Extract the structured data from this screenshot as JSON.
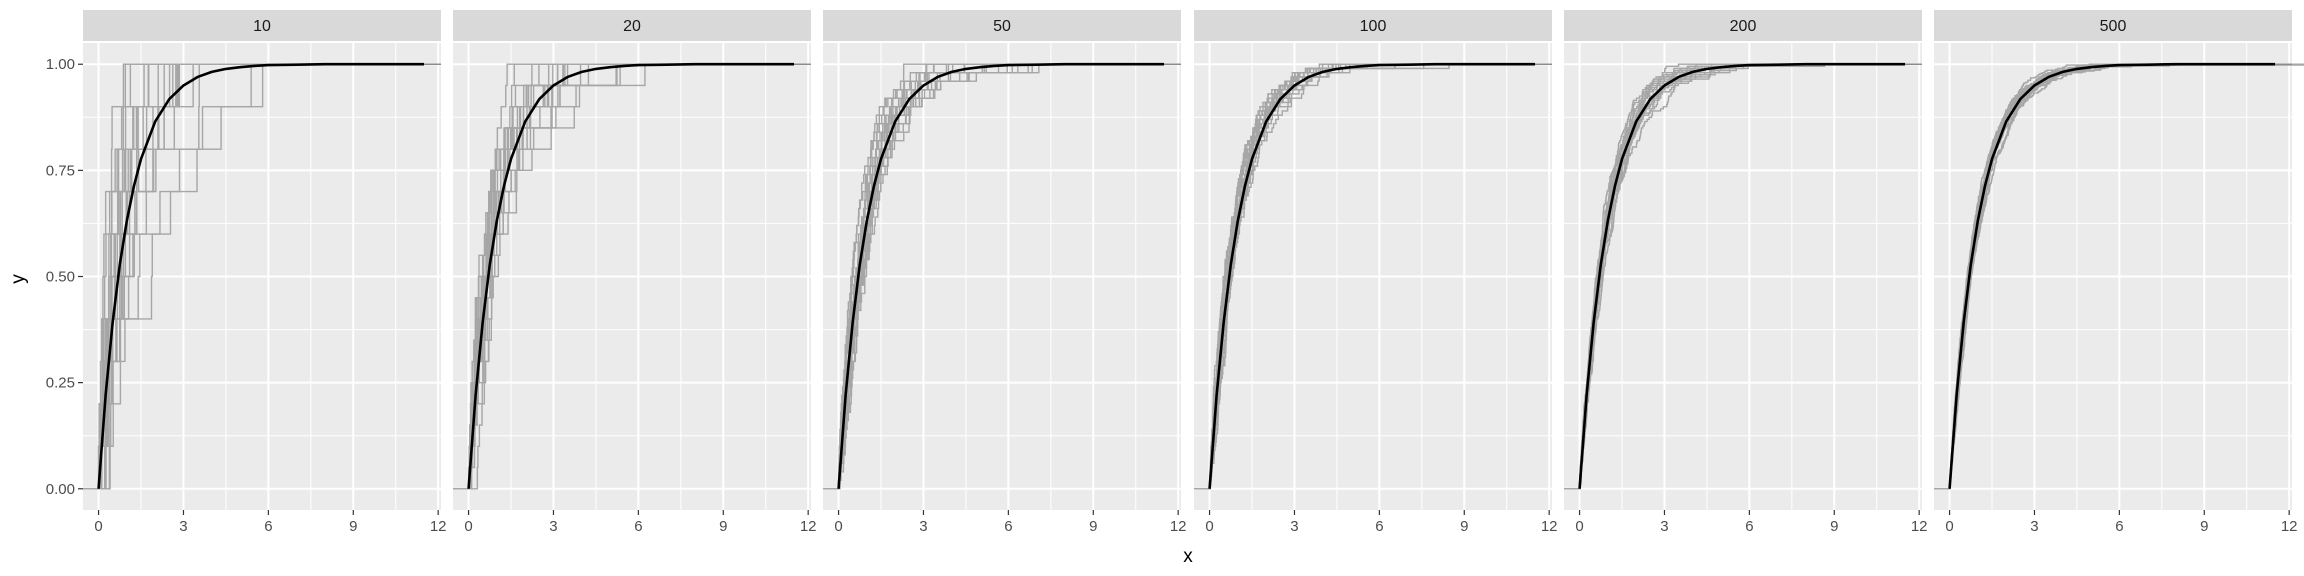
{
  "chart_data": {
    "type": "line",
    "subtype": "faceted empirical CDF curves versus theoretical CDF",
    "xlabel": "x",
    "ylabel": "y",
    "xlim": [
      -0.55,
      12.1
    ],
    "ylim": [
      -0.05,
      1.05
    ],
    "xticks": [
      0,
      3,
      6,
      9,
      12
    ],
    "yticks": [
      0.0,
      0.25,
      0.5,
      0.75,
      1.0
    ],
    "ytick_labels": [
      "0.00",
      "0.25",
      "0.50",
      "0.75",
      "1.00"
    ],
    "facet_labels": [
      "10",
      "20",
      "50",
      "100",
      "200",
      "500"
    ],
    "grid": true,
    "legend": "none",
    "theoretical_series": {
      "x": [
        0,
        0.25,
        0.5,
        0.75,
        1,
        1.25,
        1.5,
        2,
        2.5,
        3,
        3.5,
        4,
        4.5,
        5,
        5.5,
        6,
        7,
        8,
        9,
        10,
        11.5
      ],
      "y": [
        0,
        0.221,
        0.393,
        0.528,
        0.632,
        0.713,
        0.777,
        0.865,
        0.918,
        0.95,
        0.97,
        0.982,
        0.989,
        0.993,
        0.996,
        0.998,
        0.999,
        1.0,
        1.0,
        1.0,
        1.0
      ]
    },
    "empirical_series_per_facet": 20,
    "colors": {
      "panel_background": "#ebebeb",
      "strip_background": "#d9d9d9",
      "gridline": "#ffffff",
      "empirical_curves": "#a6a6a6",
      "theoretical_curve": "#000000",
      "reference_line": "#8c8c8c"
    }
  }
}
